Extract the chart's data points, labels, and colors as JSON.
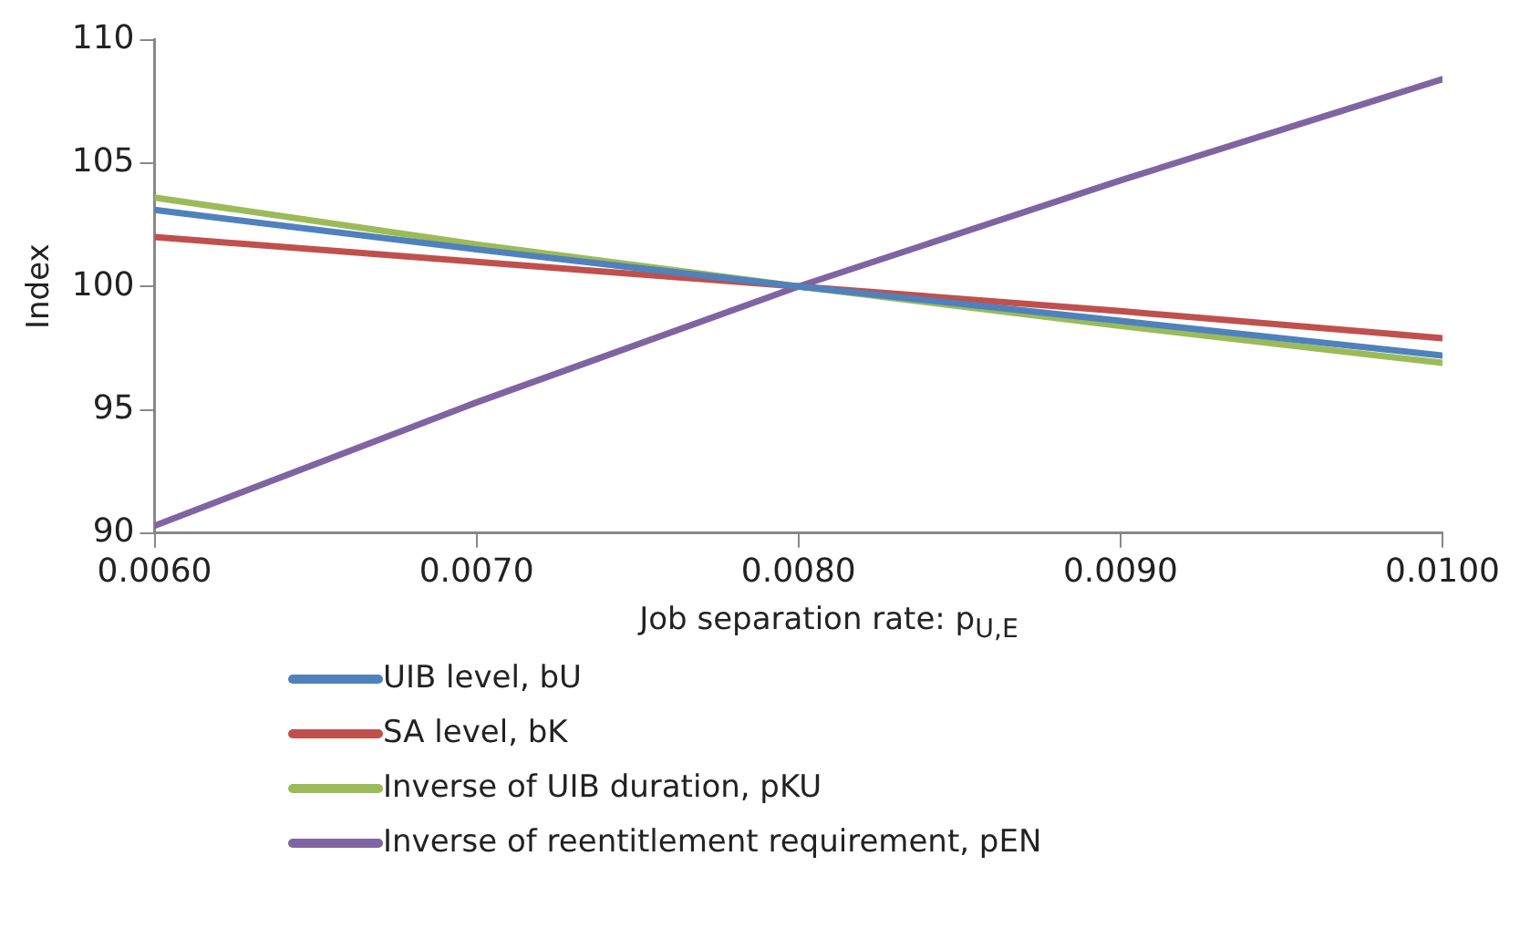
{
  "chart_data": {
    "type": "line",
    "xlabel": "Job separation rate: p$_{U,E}$",
    "ylabel": "Index",
    "x": [
      0.006,
      0.007,
      0.008,
      0.009,
      0.01
    ],
    "series": [
      {
        "name": "UIB level, bU",
        "color": "#4f81bd",
        "values": [
          103.1,
          101.5,
          100,
          98.6,
          97.2
        ]
      },
      {
        "name": "SA level, bK",
        "color": "#c0504d",
        "values": [
          102,
          101,
          100,
          99,
          97.9
        ]
      },
      {
        "name": "Inverse of UIB duration, pKU",
        "color": "#9bbb59",
        "values": [
          103.6,
          101.7,
          100,
          98.4,
          96.9
        ]
      },
      {
        "name": "Inverse of reentitlement requirement, pEN",
        "color": "#8064a2",
        "values": [
          90.3,
          95.3,
          100,
          104.3,
          108.4
        ]
      }
    ],
    "xlim": [
      0.006,
      0.01
    ],
    "xticks": [
      {
        "value": 0.006,
        "label": "0.0060"
      },
      {
        "value": 0.007,
        "label": "0.0070"
      },
      {
        "value": 0.008,
        "label": "0.0080"
      },
      {
        "value": 0.009,
        "label": "0.0090"
      },
      {
        "value": 0.01,
        "label": "0.0100"
      }
    ],
    "ylim": [
      90,
      110
    ],
    "yticks": [
      90,
      95,
      100,
      105,
      110
    ],
    "grid": false,
    "legend": "bottom",
    "marker": "none",
    "line_style": "solid"
  }
}
